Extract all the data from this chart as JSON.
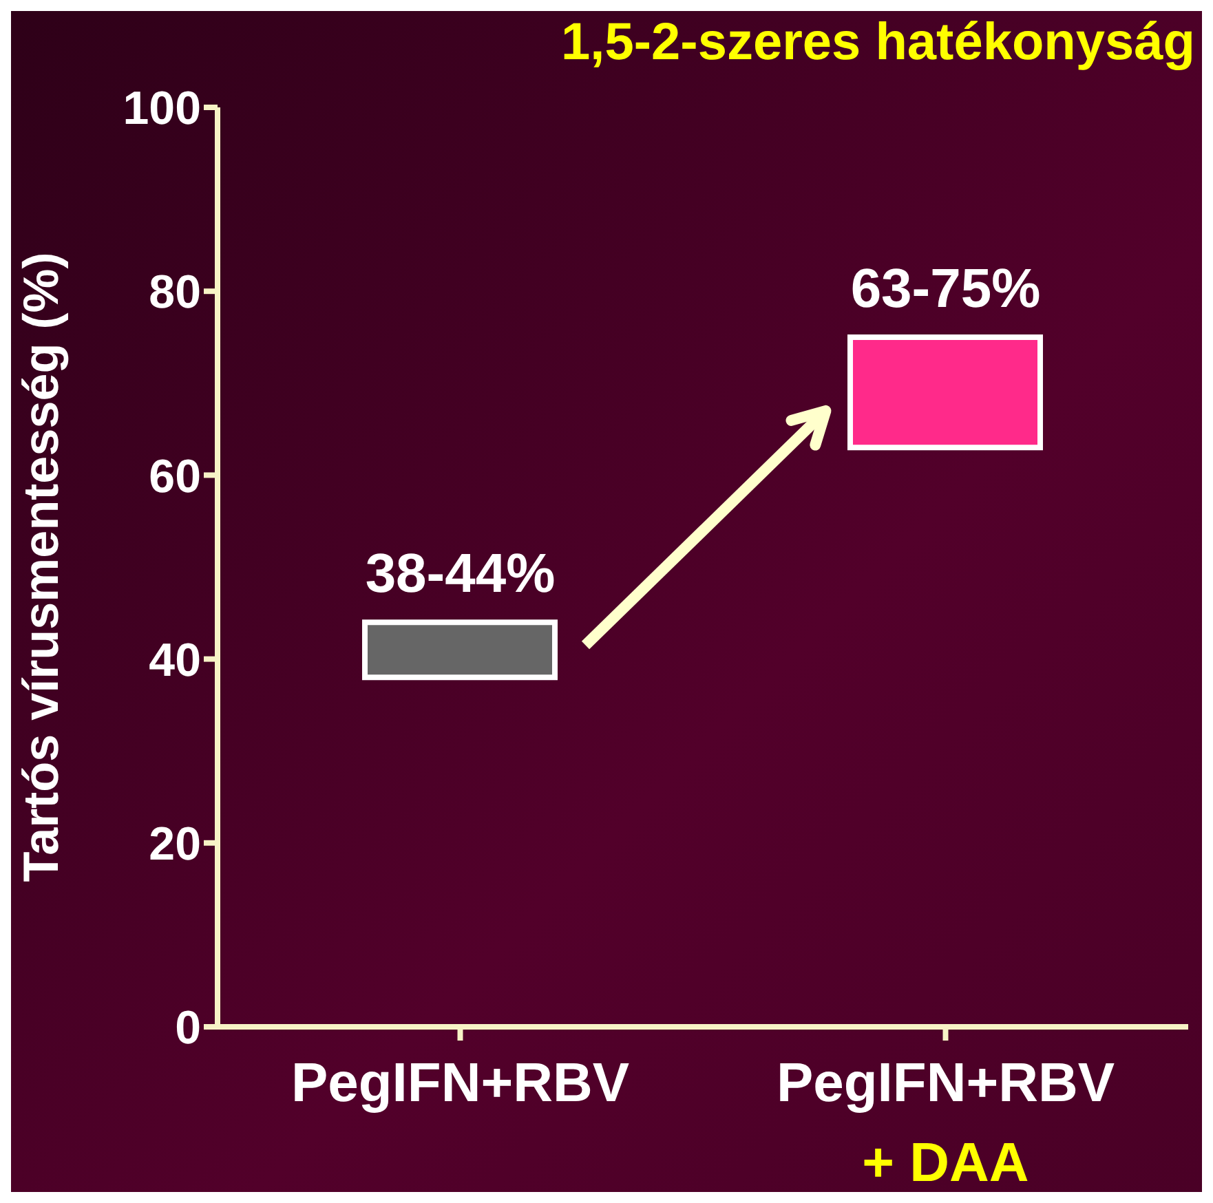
{
  "chart_data": {
    "type": "bar",
    "title": "1,5-2-szeres hatékonyság",
    "ylabel": "Tartós vírusmentesség (%)",
    "categories": [
      "PegIFN+RBV",
      "PegIFN+RBV\n+ DAA"
    ],
    "base": [
      38,
      63
    ],
    "values": [
      6,
      12
    ],
    "colors": [
      "#666666",
      "#ff2a8a"
    ],
    "annotations": [
      {
        "text": "38-44%",
        "x": "PegIFN+RBV",
        "y": 44
      },
      {
        "text": "63-75%",
        "x": "PegIFN+RBV\n+ DAA",
        "y": 75
      }
    ],
    "ylim": [
      0,
      100
    ],
    "yticks": [
      0,
      20,
      40,
      60,
      80,
      100
    ]
  }
}
